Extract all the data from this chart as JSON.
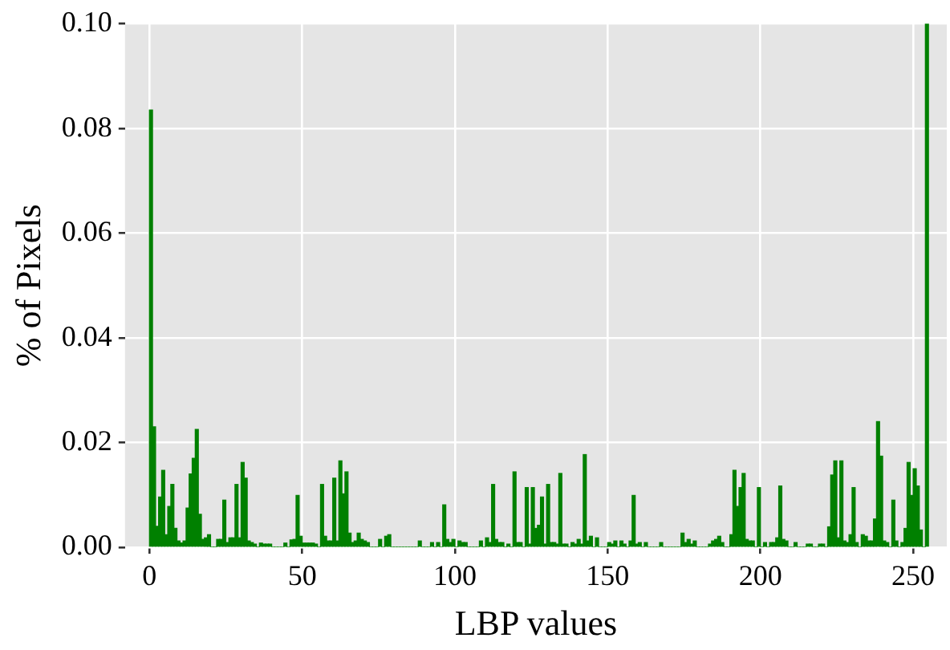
{
  "chart_data": {
    "type": "histogram",
    "xlabel": "LBP values",
    "ylabel": "% of Pixels",
    "color": "#008000",
    "bins": [
      0,
      1,
      2,
      3,
      4,
      5,
      6,
      7,
      8,
      9,
      10,
      11,
      12,
      13,
      14,
      15,
      16,
      17,
      18,
      19,
      20,
      21,
      22,
      23,
      24,
      25,
      26,
      27,
      28,
      29,
      30,
      31,
      32,
      33,
      34,
      35,
      36,
      37,
      38,
      39,
      40,
      41,
      42,
      43,
      44,
      45,
      46,
      47,
      48,
      49,
      50,
      51,
      52,
      53,
      54,
      55,
      56,
      57,
      58,
      59,
      60,
      61,
      62,
      63,
      64,
      65,
      66,
      67,
      68,
      69,
      70,
      71,
      72,
      73,
      74,
      75,
      76,
      77,
      78,
      79,
      80,
      81,
      82,
      83,
      84,
      85,
      86,
      87,
      88,
      89,
      90,
      91,
      92,
      93,
      94,
      95,
      96,
      97,
      98,
      99,
      100,
      101,
      102,
      103,
      104,
      105,
      106,
      107,
      108,
      109,
      110,
      111,
      112,
      113,
      114,
      115,
      116,
      117,
      118,
      119,
      120,
      121,
      122,
      123,
      124,
      125,
      126,
      127,
      128,
      129,
      130,
      131,
      132,
      133,
      134,
      135,
      136,
      137,
      138,
      139,
      140,
      141,
      142,
      143,
      144,
      145,
      146,
      147,
      148,
      149,
      150,
      151,
      152,
      153,
      154,
      155,
      156,
      157,
      158,
      159,
      160,
      161,
      162,
      163,
      164,
      165,
      166,
      167,
      168,
      169,
      170,
      171,
      172,
      173,
      174,
      175,
      176,
      177,
      178,
      179,
      180,
      181,
      182,
      183,
      184,
      185,
      186,
      187,
      188,
      189,
      190,
      191,
      192,
      193,
      194,
      195,
      196,
      197,
      198,
      199,
      200,
      201,
      202,
      203,
      204,
      205,
      206,
      207,
      208,
      209,
      210,
      211,
      212,
      213,
      214,
      215,
      216,
      217,
      218,
      219,
      220,
      221,
      222,
      223,
      224,
      225,
      226,
      227,
      228,
      229,
      230,
      231,
      232,
      233,
      234,
      235,
      236,
      237,
      238,
      239,
      240,
      241,
      242,
      243,
      244,
      245,
      246,
      247,
      248,
      249,
      250,
      251,
      252,
      253,
      254,
      255
    ],
    "values": [
      0.0835,
      0.023,
      0.004,
      0.0096,
      0.0147,
      0.0024,
      0.0078,
      0.012,
      0.0036,
      0.0012,
      0.0008,
      0.0012,
      0.0075,
      0.014,
      0.017,
      0.0225,
      0.0063,
      0.0015,
      0.0018,
      0.0024,
      0,
      0,
      0.0015,
      0.0015,
      0.009,
      0.0009,
      0.0018,
      0.0018,
      0.012,
      0.0018,
      0.0162,
      0.0132,
      0.0012,
      0.0009,
      0.0006,
      0,
      0.0008,
      0.0006,
      0.0006,
      0.0006,
      0,
      0,
      0,
      0,
      0.0008,
      0,
      0.0014,
      0.0015,
      0.0099,
      0.0021,
      0.0008,
      0.0008,
      0.0008,
      0.0008,
      0.0006,
      0,
      0.012,
      0.0021,
      0.0012,
      0.0012,
      0.0132,
      0.0012,
      0.0165,
      0.0102,
      0.0144,
      0.0027,
      0.0009,
      0.0012,
      0.0027,
      0.0015,
      0.0012,
      0.0009,
      0,
      0,
      0,
      0.0015,
      0,
      0.0021,
      0.0024,
      0,
      0,
      0,
      0,
      0,
      0,
      0,
      0,
      0,
      0.0012,
      0,
      0,
      0,
      0.0009,
      0,
      0.0009,
      0,
      0.0081,
      0.0015,
      0.0009,
      0.0015,
      0,
      0.0012,
      0.0009,
      0.0009,
      0,
      0,
      0,
      0,
      0.0012,
      0,
      0.0018,
      0.0009,
      0.012,
      0.0015,
      0.0009,
      0.0009,
      0,
      0.0006,
      0,
      0.0144,
      0.0009,
      0.0009,
      0,
      0.0114,
      0.0006,
      0.0114,
      0.0036,
      0.0042,
      0.0096,
      0.0006,
      0.012,
      0.0009,
      0.0009,
      0.0006,
      0.0141,
      0.0006,
      0.0006,
      0,
      0.0009,
      0.0006,
      0.0015,
      0.0006,
      0.0177,
      0.0012,
      0.0021,
      0,
      0.0018,
      0,
      0,
      0,
      0.0009,
      0.0006,
      0.0012,
      0,
      0.0012,
      0.0006,
      0,
      0.0012,
      0.0099,
      0.0006,
      0.0009,
      0,
      0.0009,
      0,
      0,
      0,
      0,
      0.0009,
      0,
      0,
      0,
      0,
      0,
      0,
      0.0027,
      0.0009,
      0.0015,
      0.0006,
      0.0012,
      0,
      0,
      0,
      0,
      0.0006,
      0.0012,
      0.0015,
      0.0021,
      0.0009,
      0,
      0,
      0.0024,
      0.0147,
      0.0078,
      0.0114,
      0.0141,
      0.0015,
      0.0012,
      0.0012,
      0,
      0.0114,
      0,
      0.0009,
      0,
      0.0009,
      0.0009,
      0.0018,
      0.0117,
      0.0015,
      0.0012,
      0,
      0,
      0.0009,
      0,
      0,
      0,
      0.0006,
      0.0006,
      0,
      0,
      0.0006,
      0.0006,
      0,
      0.0039,
      0.0138,
      0.0165,
      0.0018,
      0.0165,
      0.0012,
      0.0009,
      0.0024,
      0.0114,
      0.0009,
      0,
      0.0024,
      0.0021,
      0.0012,
      0.0012,
      0.0054,
      0.024,
      0.0174,
      0.0012,
      0.0009,
      0,
      0.009,
      0.0012,
      0,
      0.0009,
      0.0036,
      0.0162,
      0.0099,
      0.015,
      0.0117,
      0.0033,
      0,
      0.1
    ],
    "xlim": [
      -8,
      261
    ],
    "xticks": [
      0,
      50,
      100,
      150,
      200,
      250
    ],
    "ylim": [
      0,
      0.1
    ],
    "yticks": [
      {
        "value": 0,
        "label": "0.00"
      },
      {
        "value": 0.02,
        "label": "0.02"
      },
      {
        "value": 0.04,
        "label": "0.04"
      },
      {
        "value": 0.06,
        "label": "0.06"
      },
      {
        "value": 0.08,
        "label": "0.08"
      },
      {
        "value": 0.1,
        "label": "0.10"
      }
    ],
    "grid": true
  }
}
